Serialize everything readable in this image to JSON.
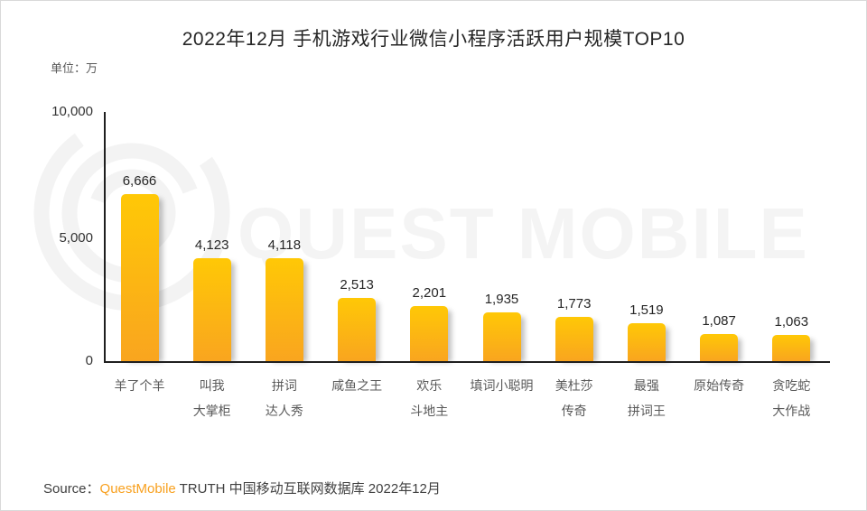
{
  "title": "2022年12月 手机游戏行业微信小程序活跃用户规模TOP10",
  "unit_label": "单位：万",
  "watermark": {
    "text": "QUEST MOBILE",
    "color": "#f4f4f4"
  },
  "source": {
    "prefix": "Source：",
    "brand": "QuestMobile",
    "rest": " TRUTH 中国移动互联网数据库 2022年12月"
  },
  "colors": {
    "bar_gradient_top": "#FFC806",
    "bar_gradient_bottom": "#F9A51F",
    "brand_orange": "#F8A01E",
    "axis": "#1f1f1f",
    "category_label": "#595959",
    "value_label": "#262626",
    "watermark_gray": "#f4f4f4"
  },
  "chart_data": {
    "type": "bar",
    "title": "2022年12月 手机游戏行业微信小程序活跃用户规模TOP10",
    "unit": "万",
    "categories": [
      "羊了个羊",
      "叫我大掌柜",
      "拼词达人秀",
      "咸鱼之王",
      "欢乐斗地主",
      "填词小聪明",
      "美杜莎传奇",
      "最强拼词王",
      "原始传奇",
      "贪吃蛇大作战"
    ],
    "category_lines": [
      [
        "羊了个羊"
      ],
      [
        "叫我",
        "大掌柜"
      ],
      [
        "拼词",
        "达人秀"
      ],
      [
        "咸鱼之王"
      ],
      [
        "欢乐",
        "斗地主"
      ],
      [
        "填词小聪明"
      ],
      [
        "美杜莎",
        "传奇"
      ],
      [
        "最强",
        "拼词王"
      ],
      [
        "原始传奇"
      ],
      [
        "贪吃蛇",
        "大作战"
      ]
    ],
    "values": [
      6666,
      4123,
      4118,
      2513,
      2201,
      1935,
      1773,
      1519,
      1087,
      1063
    ],
    "value_labels": [
      "6,666",
      "4,123",
      "4,118",
      "2,513",
      "2,201",
      "1,935",
      "1,773",
      "1,519",
      "1,087",
      "1,063"
    ],
    "y_ticks": [
      "10,000",
      "5,000",
      "0"
    ],
    "ylim": [
      0,
      10000
    ],
    "grid": false,
    "legend": false,
    "xlabel": "",
    "ylabel": "单位：万"
  }
}
